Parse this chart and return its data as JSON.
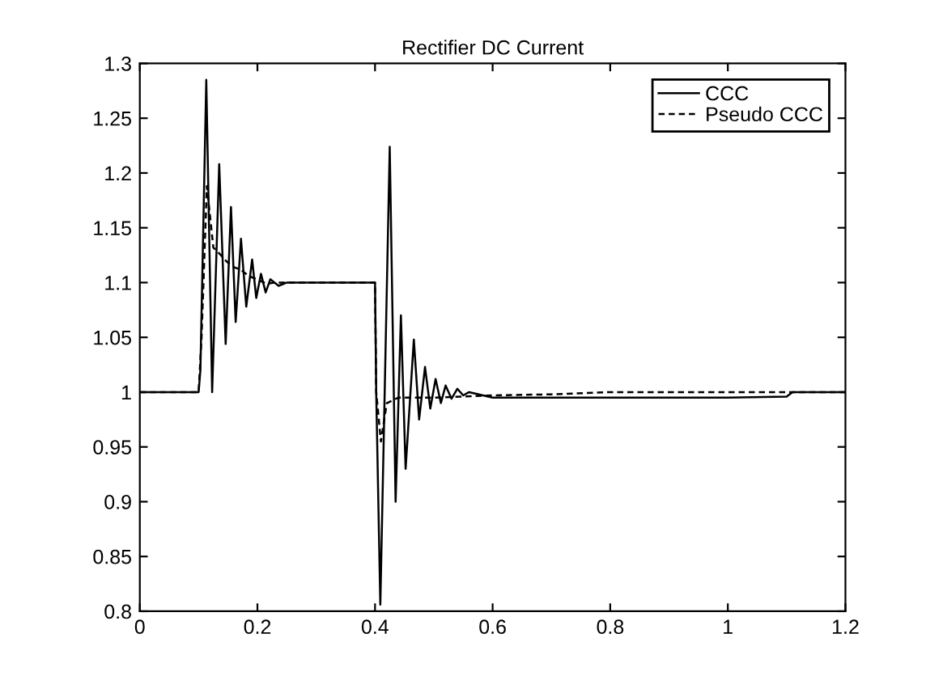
{
  "chart_data": {
    "type": "line",
    "title": "Rectifier DC Current",
    "xlim": [
      0,
      1.2
    ],
    "ylim": [
      0.8,
      1.3
    ],
    "xticks": [
      0,
      0.2,
      0.4,
      0.6,
      0.8,
      1,
      1.2
    ],
    "yticks": [
      0.8,
      0.85,
      0.9,
      0.95,
      1,
      1.05,
      1.1,
      1.15,
      1.2,
      1.25,
      1.3
    ],
    "legend": "top right",
    "grid": false,
    "series": [
      {
        "name": "CCC",
        "color": "#000000",
        "line_style": "solid",
        "x": [
          0,
          0.1,
          0.103,
          0.113,
          0.123,
          0.135,
          0.146,
          0.155,
          0.163,
          0.172,
          0.181,
          0.191,
          0.198,
          0.206,
          0.214,
          0.222,
          0.236,
          0.25,
          0.4,
          0.402,
          0.409,
          0.425,
          0.435,
          0.444,
          0.452,
          0.466,
          0.475,
          0.485,
          0.494,
          0.503,
          0.512,
          0.52,
          0.53,
          0.54,
          0.55,
          0.56,
          0.6,
          0.8,
          1.0,
          1.1,
          1.11,
          1.2
        ],
        "values": [
          1,
          1,
          1.02,
          1.285,
          1.0,
          1.208,
          1.044,
          1.169,
          1.064,
          1.14,
          1.078,
          1.121,
          1.086,
          1.108,
          1.091,
          1.103,
          1.097,
          1.1,
          1.1,
          1.0,
          0.806,
          1.224,
          0.9,
          1.07,
          0.93,
          1.048,
          0.975,
          1.023,
          0.985,
          1.012,
          0.99,
          1.006,
          0.994,
          1.003,
          0.997,
          1.0,
          0.995,
          0.995,
          0.995,
          0.996,
          1.0,
          1.0
        ]
      },
      {
        "name": "Pseudo CCC",
        "color": "#000000",
        "line_style": "dashed",
        "x": [
          0,
          0.1,
          0.105,
          0.114,
          0.125,
          0.138,
          0.148,
          0.16,
          0.171,
          0.185,
          0.199,
          0.215,
          0.23,
          0.25,
          0.4,
          0.402,
          0.41,
          0.42,
          0.44,
          0.5,
          0.6,
          0.7,
          0.8,
          1.0,
          1.2
        ],
        "values": [
          1,
          1,
          1.05,
          1.188,
          1.132,
          1.125,
          1.119,
          1.114,
          1.112,
          1.106,
          1.103,
          1.099,
          1.1,
          1.1,
          1.1,
          1.0,
          0.955,
          0.99,
          0.995,
          0.995,
          0.997,
          0.998,
          1.0,
          1.0,
          1.0
        ]
      }
    ]
  }
}
